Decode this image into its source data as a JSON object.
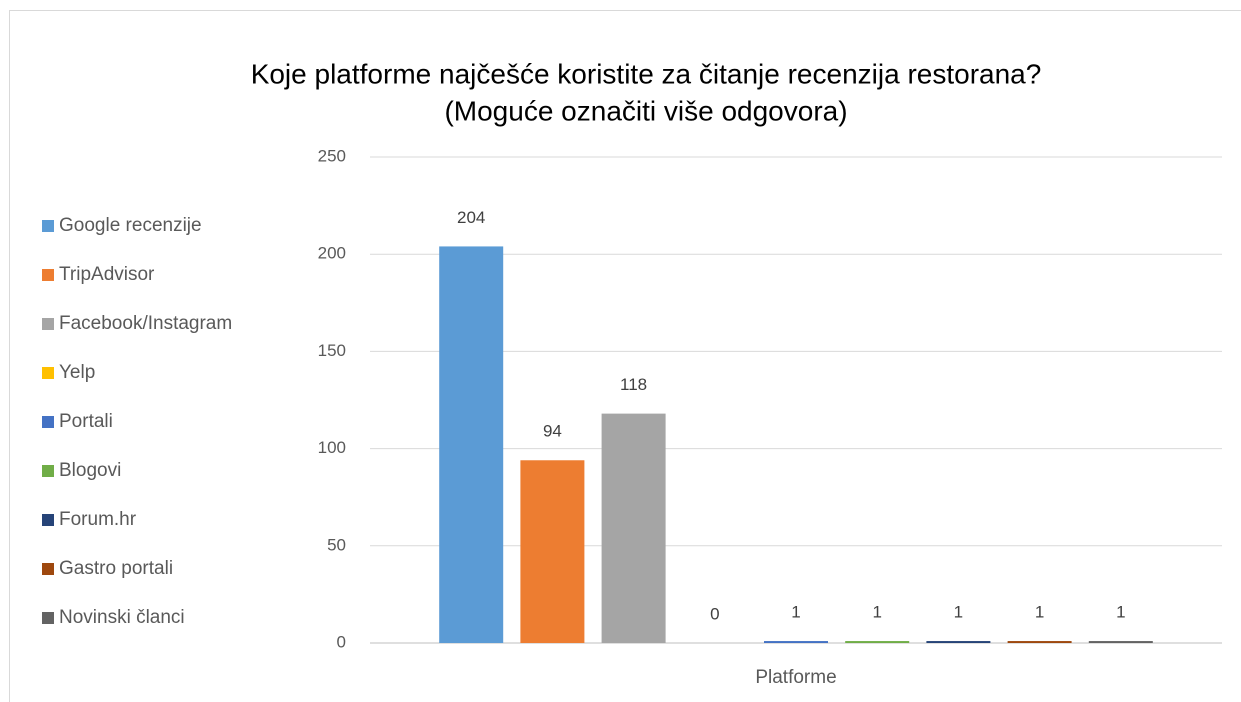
{
  "chart_data": {
    "type": "bar",
    "title": [
      "Koje platforme najčešće koristite za čitanje recenzija restorana?",
      "(Moguće označiti više odgovora)"
    ],
    "x_label": "Platforme",
    "categories": [
      "Platforme"
    ],
    "series": [
      {
        "name": "Google recenzije",
        "color": "#5b9bd5",
        "values": [
          204
        ]
      },
      {
        "name": "TripAdvisor",
        "color": "#ed7d31",
        "values": [
          94
        ]
      },
      {
        "name": "Facebook/Instagram",
        "color": "#a5a5a5",
        "values": [
          118
        ]
      },
      {
        "name": "Yelp",
        "color": "#ffc000",
        "values": [
          0
        ]
      },
      {
        "name": "Portali",
        "color": "#4472c4",
        "values": [
          1
        ]
      },
      {
        "name": "Blogovi",
        "color": "#70ad47",
        "values": [
          1
        ]
      },
      {
        "name": "Forum.hr",
        "color": "#264478",
        "values": [
          1
        ]
      },
      {
        "name": "Gastro portali",
        "color": "#9e480e",
        "values": [
          1
        ]
      },
      {
        "name": "Novinski članci",
        "color": "#636363",
        "values": [
          1
        ]
      }
    ],
    "ylim": [
      0,
      250
    ],
    "yticks": [
      0,
      50,
      100,
      150,
      200,
      250
    ],
    "grid": true,
    "legend": "left"
  }
}
